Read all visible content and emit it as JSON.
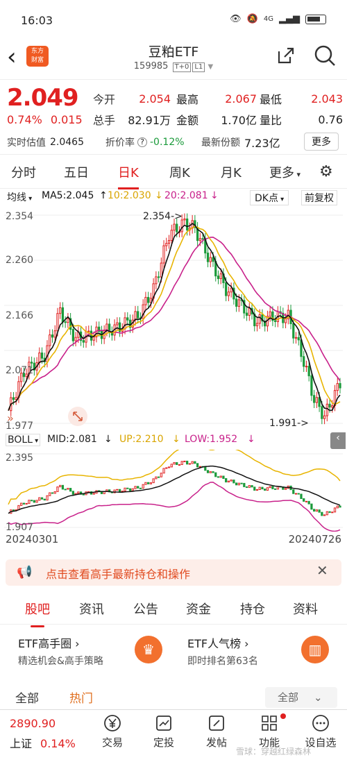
{
  "status": {
    "time": "16:03",
    "network": "4G"
  },
  "nav": {
    "logo": "东方\n财富",
    "title": "豆粕ETF",
    "code": "159985",
    "tag1": "T+0",
    "tag2": "L1"
  },
  "quote": {
    "price": "2.049",
    "change_pct": "0.74%",
    "change": "0.015",
    "open_k": "今开",
    "open_v": "2.054",
    "high_k": "最高",
    "high_v": "2.067",
    "low_k": "最低",
    "low_v": "2.043",
    "vol_k": "总手",
    "vol_v": "82.91万",
    "amt_k": "金额",
    "amt_v": "1.70亿",
    "ratio_k": "量比",
    "ratio_v": "0.76",
    "est_k": "实时估值",
    "est_v": "2.0465",
    "prem_k": "折价率",
    "prem_v": "-0.12%",
    "shares_k": "最新份额",
    "shares_v": "7.23亿",
    "more": "更多"
  },
  "period_tabs": [
    "分时",
    "五日",
    "日K",
    "周K",
    "月K",
    "更多"
  ],
  "chart": {
    "ma_label": "均线",
    "ma5": "MA5:2.045",
    "ma10": "10:2.030",
    "ma20": "20:2.081",
    "dk": "DK点",
    "adj": "前复权",
    "y_ticks": [
      "2.354",
      "2.260",
      "2.166",
      "2.071",
      "1.977"
    ],
    "high_note": "2.354->",
    "low_note": "1.991->",
    "boll_label": "BOLL",
    "mid": "MID:2.081",
    "up": "UP:2.210",
    "low": "LOW:1.952",
    "boll_ticks": [
      "2.395",
      "1.907"
    ],
    "date_start": "20240301",
    "date_end": "20240726",
    "colors": {
      "up": "#e02020",
      "down": "#1a9a3a",
      "ma5": "#111111",
      "ma10": "#e8b400",
      "ma20": "#c8208a"
    }
  },
  "chart_data": {
    "type": "candlestick",
    "x_start": "20240301",
    "x_end": "20240726",
    "ylim": [
      1.977,
      2.354
    ],
    "high": 2.354,
    "low": 1.991,
    "series": [
      {
        "name": "MA5",
        "last": 2.045
      },
      {
        "name": "MA10",
        "last": 2.03
      },
      {
        "name": "MA20",
        "last": 2.081
      }
    ],
    "boll": {
      "MID": 2.081,
      "UP": 2.21,
      "LOW": 1.952,
      "ylim": [
        1.907,
        2.395
      ]
    }
  },
  "banner": {
    "text": "点击查看高手最新持仓和操作"
  },
  "sub_tabs": [
    "股吧",
    "资讯",
    "公告",
    "资金",
    "持仓",
    "资料"
  ],
  "cards": [
    {
      "title": "ETF高手圈 ›",
      "sub": "精选机会&高手策略"
    },
    {
      "title": "ETF人气榜 ›",
      "sub": "即时排名第63名"
    }
  ],
  "filter": {
    "all": "全部",
    "hot": "热门",
    "select": "全部"
  },
  "bottom": {
    "index_value": "2890.90",
    "index_name": "上证",
    "index_pct": "0.14%",
    "items": [
      "交易",
      "定投",
      "发帖",
      "功能",
      "设自选"
    ]
  },
  "watermark": "雪球：穿越红绿森林"
}
